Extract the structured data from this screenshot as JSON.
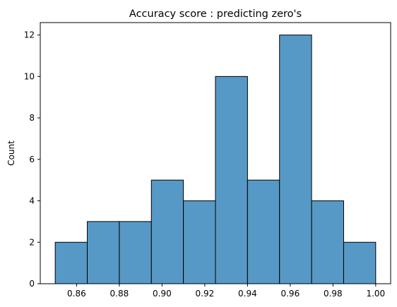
{
  "chart_data": {
    "type": "bar",
    "title": "Accuracy score : predicting zero's",
    "xlabel": "",
    "ylabel": "Count",
    "bin_edges": [
      0.85,
      0.865,
      0.88,
      0.895,
      0.91,
      0.925,
      0.94,
      0.955,
      0.97,
      0.985,
      1.0
    ],
    "values": [
      2,
      3,
      3,
      5,
      4,
      10,
      5,
      12,
      4,
      2
    ],
    "xlim": [
      0.843,
      1.007
    ],
    "ylim": [
      0,
      12.6
    ],
    "xticks": [
      0.86,
      0.88,
      0.9,
      0.92,
      0.94,
      0.96,
      0.98,
      1.0
    ],
    "xtick_labels": [
      "0.86",
      "0.88",
      "0.90",
      "0.92",
      "0.94",
      "0.96",
      "0.98",
      "1.00"
    ],
    "yticks": [
      0,
      2,
      4,
      6,
      8,
      10,
      12
    ],
    "ytick_labels": [
      "0",
      "2",
      "4",
      "6",
      "8",
      "10",
      "12"
    ],
    "bar_color": "#5799c6",
    "edge_color": "#000000",
    "grid": false,
    "legend": "none"
  }
}
